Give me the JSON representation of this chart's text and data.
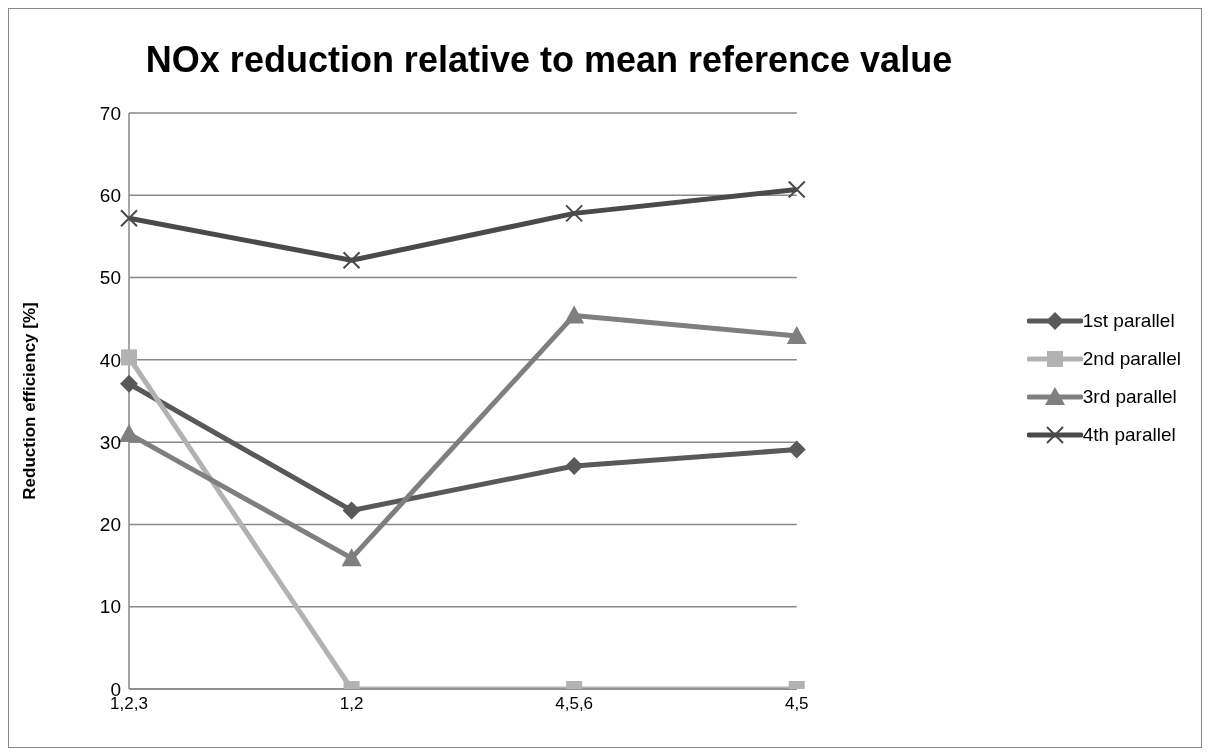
{
  "chart_data": {
    "type": "line",
    "title": "NOx reduction relative to mean reference value",
    "ylabel": "Reduction efficiency [%]",
    "categories": [
      "1,2,3",
      "1,2",
      "4,5,6",
      "4,5"
    ],
    "series": [
      {
        "name": "1st parallel",
        "color": "#595959",
        "marker": "diamond",
        "values": [
          37.1,
          21.7,
          27.1,
          29.1
        ]
      },
      {
        "name": "2nd parallel",
        "color": "#b2b2b2",
        "marker": "square",
        "values": [
          40.3,
          0,
          0,
          0
        ]
      },
      {
        "name": "3rd parallel",
        "color": "#7f7f7f",
        "marker": "triangle",
        "values": [
          31.0,
          15.9,
          45.4,
          42.9
        ]
      },
      {
        "name": "4th parallel",
        "color": "#4a4a4a",
        "marker": "cross",
        "values": [
          57.2,
          52.1,
          57.8,
          60.7
        ]
      }
    ],
    "ylim": [
      0,
      70
    ],
    "yticks": [
      0,
      10,
      20,
      30,
      40,
      50,
      60,
      70
    ],
    "grid": "y",
    "legend": "right"
  }
}
